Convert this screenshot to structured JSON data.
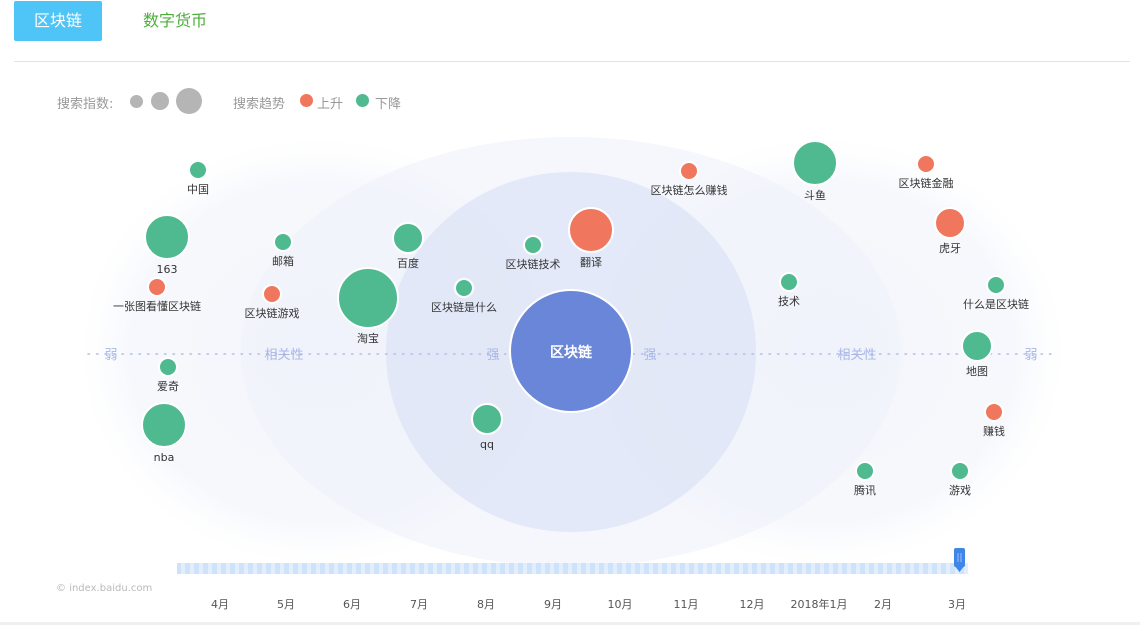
{
  "tabs": [
    {
      "label": "区块链",
      "active": true
    },
    {
      "label": "数字货币",
      "active": false
    }
  ],
  "legend": {
    "size_label": "搜索指数:",
    "trend_label": "搜索趋势",
    "up_label": "上升",
    "down_label": "下降"
  },
  "colors": {
    "up": "#f0775e",
    "down": "#4fb98f",
    "center": "#6a86d8",
    "tab_active": "#4fc4f7",
    "tab_inactive_text": "#4caf3a",
    "axis_text": "#a8b6e6"
  },
  "credit": "index.baidu.com",
  "chart_data": {
    "type": "bubble-relevance",
    "center": {
      "label": "区块链"
    },
    "axis_labels": {
      "left_weak": "弱",
      "left_relevance": "相关性",
      "left_strong": "强",
      "right_strong": "强",
      "right_relevance": "相关性",
      "right_weak": "弱"
    },
    "nodes": [
      {
        "label": "中国",
        "trend": "down",
        "size": 1
      },
      {
        "label": "163",
        "trend": "down",
        "size": 3
      },
      {
        "label": "一张图看懂区块链",
        "trend": "up",
        "size": 1
      },
      {
        "label": "爱奇",
        "trend": "down",
        "size": 1
      },
      {
        "label": "nba",
        "trend": "down",
        "size": 3
      },
      {
        "label": "邮箱",
        "trend": "down",
        "size": 1
      },
      {
        "label": "区块链游戏",
        "trend": "up",
        "size": 1
      },
      {
        "label": "淘宝",
        "trend": "down",
        "size": 4
      },
      {
        "label": "百度",
        "trend": "down",
        "size": 2
      },
      {
        "label": "区块链是什么",
        "trend": "down",
        "size": 1
      },
      {
        "label": "qq",
        "trend": "down",
        "size": 2
      },
      {
        "label": "区块链技术",
        "trend": "down",
        "size": 1
      },
      {
        "label": "翻译",
        "trend": "up",
        "size": 3
      },
      {
        "label": "区块链怎么赚钱",
        "trend": "up",
        "size": 1
      },
      {
        "label": "技术",
        "trend": "down",
        "size": 1
      },
      {
        "label": "斗鱼",
        "trend": "down",
        "size": 3
      },
      {
        "label": "区块链金融",
        "trend": "up",
        "size": 1
      },
      {
        "label": "虎牙",
        "trend": "up",
        "size": 2
      },
      {
        "label": "什么是区块链",
        "trend": "down",
        "size": 1
      },
      {
        "label": "地图",
        "trend": "down",
        "size": 2
      },
      {
        "label": "赚钱",
        "trend": "up",
        "size": 1
      },
      {
        "label": "腾讯",
        "trend": "down",
        "size": 1
      },
      {
        "label": "游戏",
        "trend": "down",
        "size": 1
      }
    ],
    "timeline": {
      "months": [
        "4月",
        "5月",
        "6月",
        "7月",
        "8月",
        "9月",
        "10月",
        "11月",
        "12月",
        "2018年1月",
        "2月",
        "3月"
      ],
      "selected": "3月"
    }
  }
}
